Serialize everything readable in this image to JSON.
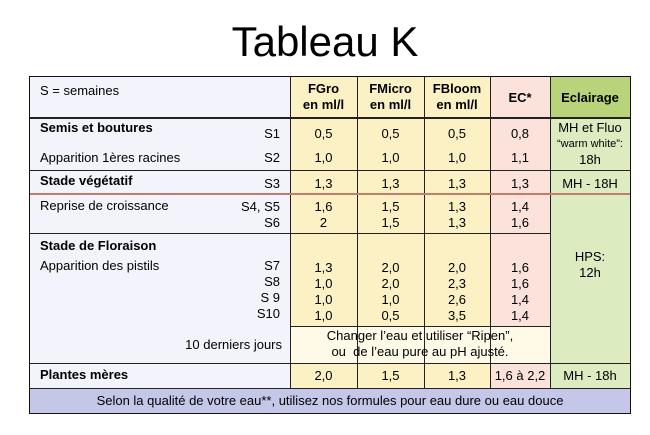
{
  "title": "Tableau K",
  "header": {
    "legend": "S = semaines",
    "fgro": "FGro\nen ml/l",
    "fmicro": "FMicro\nen ml/l",
    "fbloom": "FBloom\nen ml/l",
    "ec": "EC*",
    "eclairage": "Eclairage"
  },
  "rows": {
    "semis_title": "Semis et boutures",
    "semis_week": "S1",
    "semis_fgro": "0,5",
    "semis_fmicro": "0,5",
    "semis_fbloom": "0,5",
    "semis_ec": "0,8",
    "racines_label": "Apparition 1ères racines",
    "racines_week": "S2",
    "racines_fgro": "1,0",
    "racines_fmicro": "1,0",
    "racines_fbloom": "1,0",
    "racines_ec": "1,1",
    "light_semis": "MH et Fluo",
    "light_semis_2": "“warm white”:",
    "light_semis_3": "18h",
    "veg_title": "Stade végétatif",
    "veg_week": "S3",
    "veg_fgro": "1,3",
    "veg_fmicro": "1,3",
    "veg_fbloom": "1,3",
    "veg_ec": "1,3",
    "light_veg": "MH - 18H",
    "reprise_label": "Reprise de croissance",
    "reprise_weeks": "S4, S5\nS6",
    "reprise_fgro": "1,6\n2",
    "reprise_fmicro": "1,5\n1,5",
    "reprise_fbloom": "1,3\n1,3",
    "reprise_ec": "1,4\n1,6",
    "flor_title": "Stade de Floraison",
    "pistils_label": "Apparition des pistils",
    "flor_weeks": "S7\nS8\nS 9\nS10",
    "flor_fgro": "1,3\n1,0\n1,0\n1,0",
    "flor_fmicro": "2,0\n2,0\n1,0\n0,5",
    "flor_fbloom": "2,0\n2,3\n2,6\n3,5",
    "flor_ec": "1,6\n1,6\n1,4\n1,4",
    "light_flor": "HPS:\n12h",
    "last_days_label": "10 derniers jours",
    "ripen_note": "Changer l’eau et utiliser “Ripen”,\nou  de l’eau pure au pH ajusté.",
    "meres_title": "Plantes mères",
    "meres_fgro": "2,0",
    "meres_fmicro": "1,5",
    "meres_fbloom": "1,3",
    "meres_ec": "1,6 à 2,2",
    "light_meres": "MH - 18h"
  },
  "footer": "Selon la qualité de votre eau**, utilisez nos formules pour eau dure ou eau douce",
  "colors": {
    "label_col": "#f3f4fb",
    "nutrient_col": "#fbf1c4",
    "ec_col": "#fbe2da",
    "eclairage_col": "#dcebc0",
    "eclairage_header": "#b8d37a",
    "footer_bg": "#c4c7e8",
    "separator": "#c77b6a"
  }
}
